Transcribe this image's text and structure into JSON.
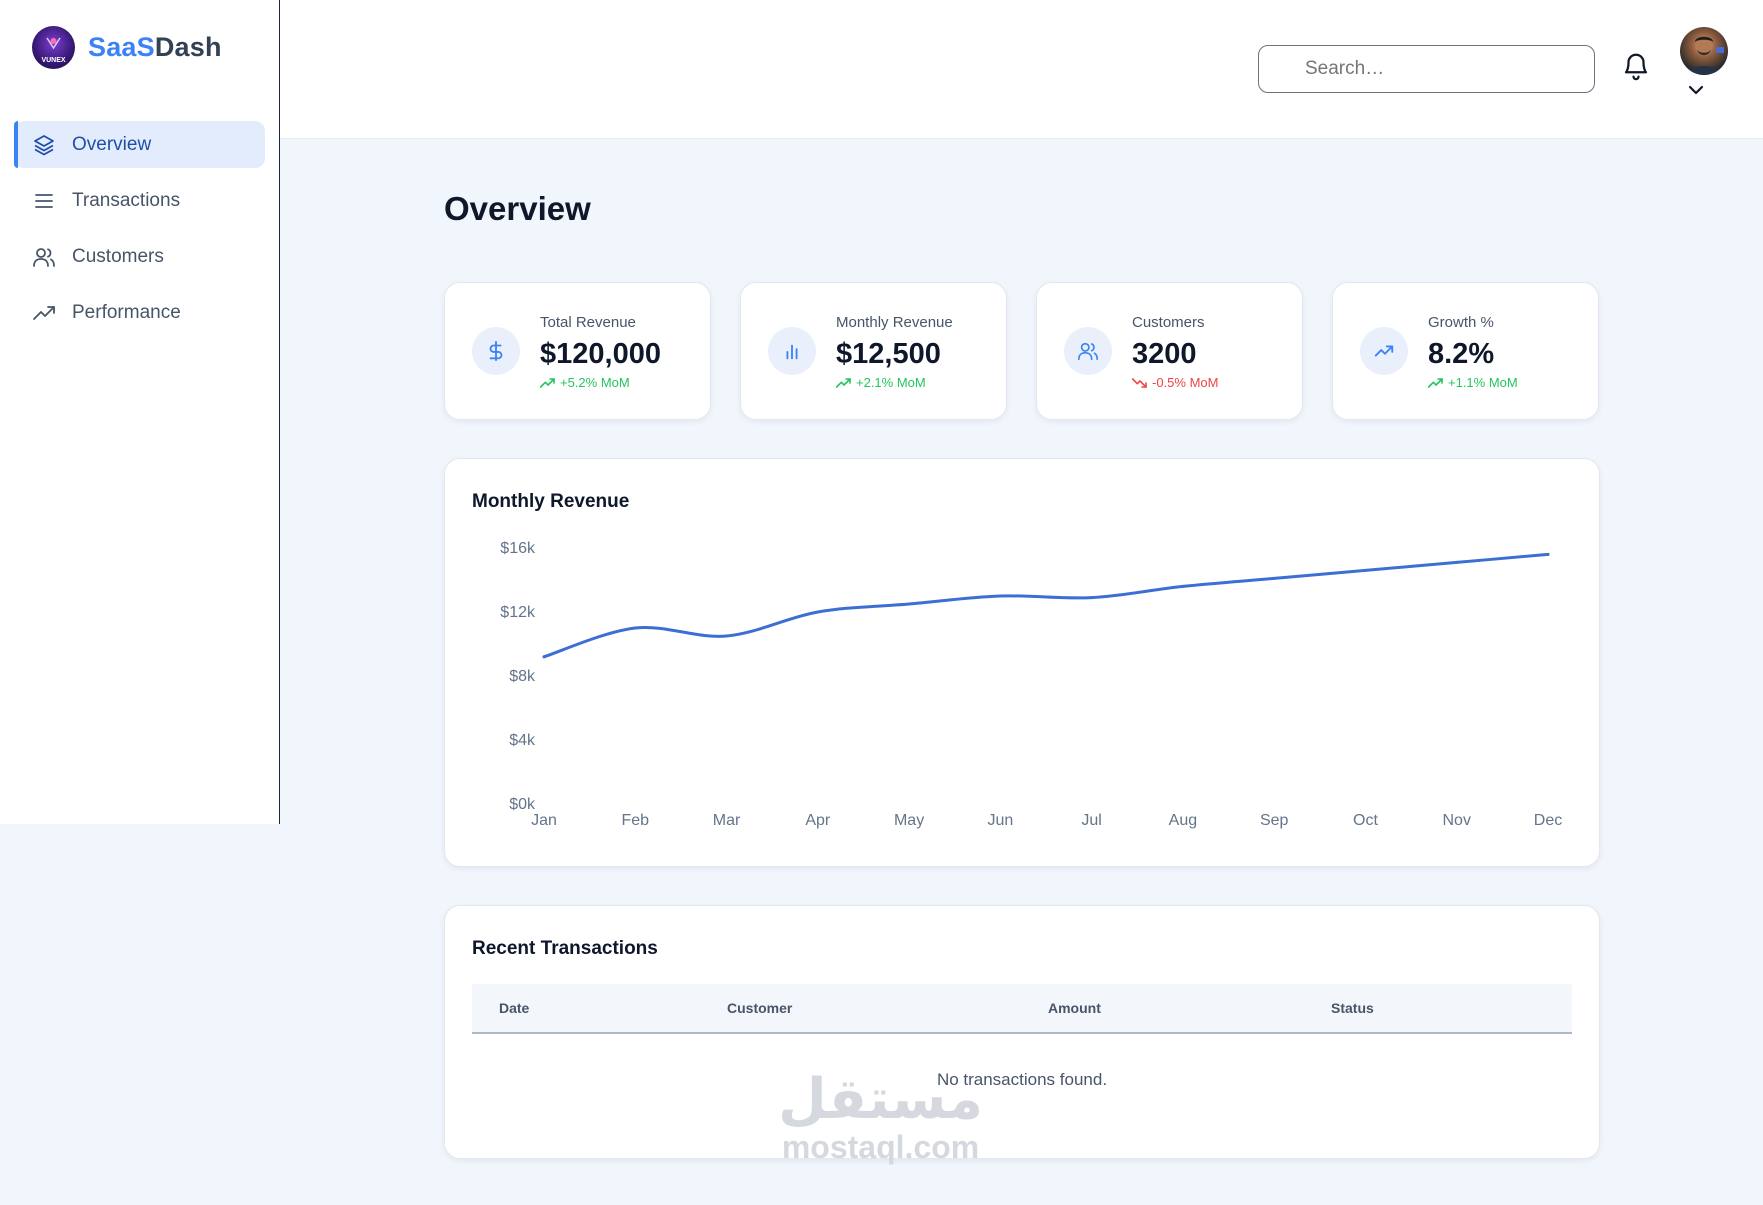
{
  "brand": {
    "name_part1": "SaaS",
    "name_part2": "Dash",
    "logo_text": "VUNEX"
  },
  "sidebar": {
    "items": [
      {
        "label": "Overview",
        "icon": "layers-icon",
        "active": true
      },
      {
        "label": "Transactions",
        "icon": "list-icon",
        "active": false
      },
      {
        "label": "Customers",
        "icon": "users-icon",
        "active": false
      },
      {
        "label": "Performance",
        "icon": "trending-up-icon",
        "active": false
      }
    ]
  },
  "header": {
    "search_placeholder": "Search…"
  },
  "page": {
    "title": "Overview"
  },
  "stats": [
    {
      "label": "Total Revenue",
      "value": "$120,000",
      "change": "+5.2% MoM",
      "trend": "up",
      "icon": "dollar-icon"
    },
    {
      "label": "Monthly Revenue",
      "value": "$12,500",
      "change": "+2.1% MoM",
      "trend": "up",
      "icon": "bar-chart-icon"
    },
    {
      "label": "Customers",
      "value": "3200",
      "change": "-0.5% MoM",
      "trend": "down",
      "icon": "users-icon"
    },
    {
      "label": "Growth %",
      "value": "8.2%",
      "change": "+1.1% MoM",
      "trend": "up",
      "icon": "trending-up-icon"
    }
  ],
  "chart_data": {
    "type": "line",
    "title": "Monthly Revenue",
    "xlabel": "",
    "ylabel": "",
    "categories": [
      "Jan",
      "Feb",
      "Mar",
      "Apr",
      "May",
      "Jun",
      "Jul",
      "Aug",
      "Sep",
      "Oct",
      "Nov",
      "Dec"
    ],
    "y_ticks": [
      "$0k",
      "$4k",
      "$8k",
      "$12k",
      "$16k"
    ],
    "ylim": [
      0,
      16000
    ],
    "series": [
      {
        "values": [
          9200,
          11000,
          10500,
          12000,
          12500,
          13000,
          12900,
          13600,
          14100,
          14600,
          15100,
          15600
        ],
        "color": "#3b6fd4"
      }
    ],
    "grid": false,
    "legend": "none"
  },
  "transactions": {
    "title": "Recent Transactions",
    "columns": [
      "Date",
      "Customer",
      "Amount",
      "Status"
    ],
    "empty_text": "No transactions found."
  },
  "watermark": {
    "arabic": "مستقل",
    "latin": "mostaql.com"
  },
  "colors": {
    "accent": "#3b82f6",
    "line": "#3b6fd4",
    "positive": "#22c55e",
    "negative": "#ef4444"
  }
}
